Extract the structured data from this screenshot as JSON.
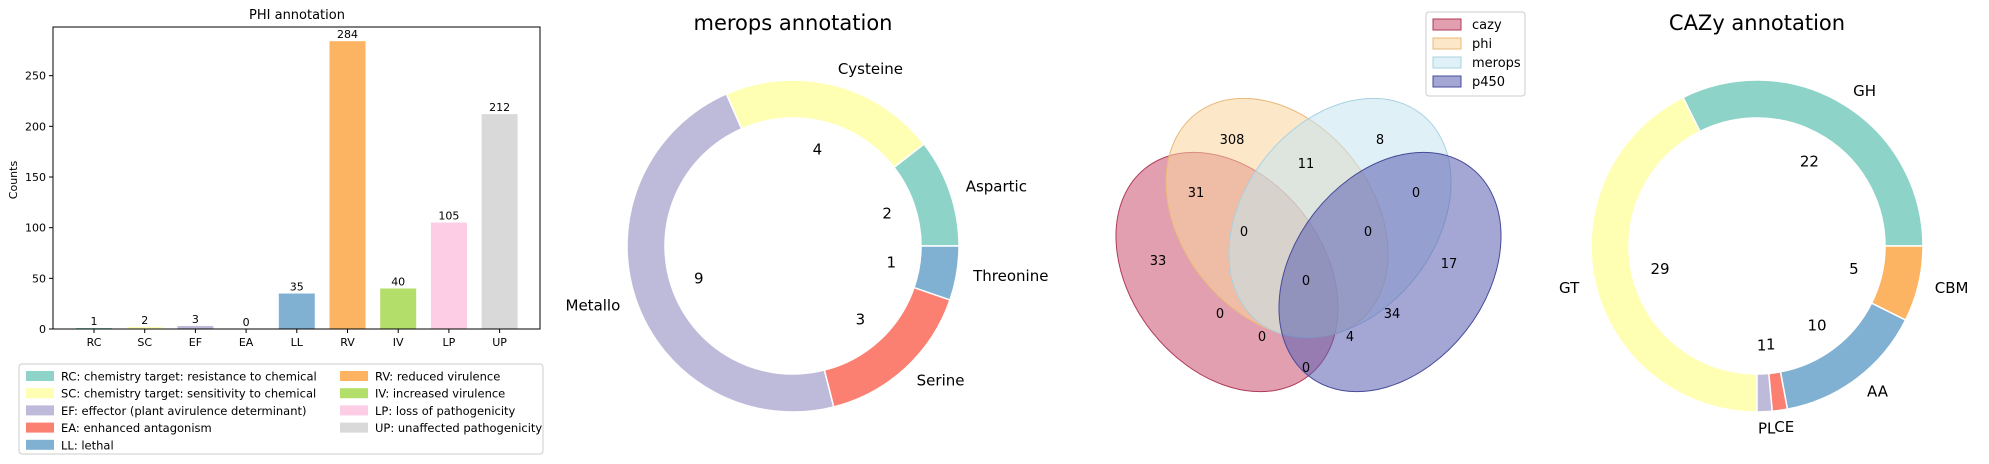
{
  "colors": {
    "RC": "#8dd3c7",
    "SC": "#ffffb3",
    "EF": "#bebada",
    "EA": "#fb8072",
    "LL": "#80b1d3",
    "RV": "#fdb462",
    "IV": "#b3de69",
    "LP": "#fccde5",
    "UP": "#d9d9d9"
  },
  "chart_data": [
    {
      "type": "bar",
      "title": "PHI annotation",
      "ylabel": "Counts",
      "xlabel": "",
      "categories": [
        "RC",
        "SC",
        "EF",
        "EA",
        "LL",
        "RV",
        "IV",
        "LP",
        "UP"
      ],
      "values": [
        1,
        2,
        3,
        0,
        35,
        284,
        40,
        105,
        212
      ],
      "ylim": [
        0,
        298
      ],
      "yticks": [
        0,
        50,
        100,
        150,
        200,
        250
      ],
      "legend": {
        "placement": "below",
        "entries": [
          {
            "key": "RC",
            "label": "RC: chemistry target: resistance to chemical"
          },
          {
            "key": "SC",
            "label": "SC: chemistry target: sensitivity to chemical"
          },
          {
            "key": "EF",
            "label": "EF: effector (plant avirulence determinant)"
          },
          {
            "key": "EA",
            "label": "EA: enhanced antagonism"
          },
          {
            "key": "LL",
            "label": "LL: lethal"
          },
          {
            "key": "RV",
            "label": "RV: reduced virulence"
          },
          {
            "key": "IV",
            "label": "IV: increased virulence"
          },
          {
            "key": "LP",
            "label": "LP: loss of pathogenicity"
          },
          {
            "key": "UP",
            "label": "UP: unaffected pathogenicity"
          }
        ]
      }
    },
    {
      "type": "pie",
      "title": "merops annotation",
      "slices": [
        {
          "label": "Aspartic",
          "value": 2,
          "color": "#8dd3c7"
        },
        {
          "label": "Cysteine",
          "value": 4,
          "color": "#ffffb3"
        },
        {
          "label": "Metallo",
          "value": 9,
          "color": "#bebada"
        },
        {
          "label": "Serine",
          "value": 3,
          "color": "#fb8072"
        },
        {
          "label": "Threonine",
          "value": 1,
          "color": "#80b1d3"
        }
      ]
    },
    {
      "type": "venn",
      "title": "",
      "sets": [
        {
          "name": "cazy",
          "color": "#c9506e"
        },
        {
          "name": "phi",
          "color": "#fbd39c"
        },
        {
          "name": "merops",
          "color": "#c5e4ef"
        },
        {
          "name": "p450",
          "color": "#5a5fb0"
        }
      ],
      "legend": {
        "placement": "top-right"
      },
      "regions": [
        {
          "sets": [
            "cazy"
          ],
          "value": 33
        },
        {
          "sets": [
            "phi"
          ],
          "value": 308
        },
        {
          "sets": [
            "merops"
          ],
          "value": 8
        },
        {
          "sets": [
            "p450"
          ],
          "value": 17
        },
        {
          "sets": [
            "cazy",
            "phi"
          ],
          "value": 31
        },
        {
          "sets": [
            "phi",
            "merops"
          ],
          "value": 11
        },
        {
          "sets": [
            "merops",
            "p450"
          ],
          "value": 0
        },
        {
          "sets": [
            "cazy",
            "p450"
          ],
          "value": 0
        },
        {
          "sets": [
            "cazy",
            "merops"
          ],
          "value": 0
        },
        {
          "sets": [
            "phi",
            "p450"
          ],
          "value": 34
        },
        {
          "sets": [
            "cazy",
            "phi",
            "merops"
          ],
          "value": 0
        },
        {
          "sets": [
            "phi",
            "merops",
            "p450"
          ],
          "value": 0
        },
        {
          "sets": [
            "cazy",
            "merops",
            "p450"
          ],
          "value": 0
        },
        {
          "sets": [
            "cazy",
            "phi",
            "p450"
          ],
          "value": 4
        },
        {
          "sets": [
            "cazy",
            "phi",
            "merops",
            "p450"
          ],
          "value": 0
        }
      ]
    },
    {
      "type": "pie",
      "title": "CAZy annotation",
      "slices": [
        {
          "label": "GH",
          "value": 22,
          "color": "#8dd3c7"
        },
        {
          "label": "GT",
          "value": 29,
          "color": "#ffffb3"
        },
        {
          "label": "PL",
          "value": 1,
          "color": "#bebada"
        },
        {
          "label": "CE",
          "value": 1,
          "color": "#fb8072"
        },
        {
          "label": "AA",
          "value": 10,
          "color": "#80b1d3"
        },
        {
          "label": "CBM",
          "value": 5,
          "color": "#fdb462"
        }
      ]
    }
  ]
}
